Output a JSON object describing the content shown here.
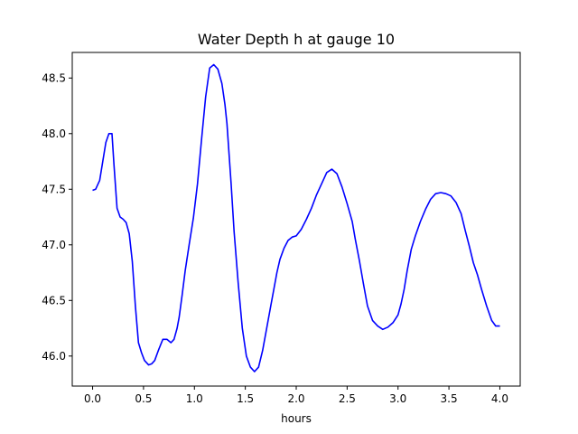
{
  "chart_data": {
    "type": "line",
    "title": "Water Depth h at gauge 10",
    "xlabel": "hours",
    "ylabel": "",
    "xlim": [
      -0.2,
      4.2
    ],
    "ylim": [
      45.73,
      48.73
    ],
    "xticks": [
      0.0,
      0.5,
      1.0,
      1.5,
      2.0,
      2.5,
      3.0,
      3.5,
      4.0
    ],
    "xtick_labels": [
      "0.0",
      "0.5",
      "1.0",
      "1.5",
      "2.0",
      "2.5",
      "3.0",
      "3.5",
      "4.0"
    ],
    "yticks": [
      46.0,
      46.5,
      47.0,
      47.5,
      48.0,
      48.5
    ],
    "ytick_labels": [
      "46.0",
      "46.5",
      "47.0",
      "47.5",
      "48.0",
      "48.5"
    ],
    "grid": false,
    "series": [
      {
        "color": "#0000ff",
        "x": [
          0.0,
          0.03,
          0.07,
          0.1,
          0.13,
          0.16,
          0.19,
          0.21,
          0.24,
          0.27,
          0.3,
          0.33,
          0.36,
          0.39,
          0.42,
          0.45,
          0.48,
          0.51,
          0.55,
          0.58,
          0.61,
          0.65,
          0.69,
          0.73,
          0.77,
          0.8,
          0.83,
          0.85,
          0.88,
          0.91,
          0.95,
          0.99,
          1.03,
          1.07,
          1.11,
          1.15,
          1.19,
          1.23,
          1.27,
          1.3,
          1.32,
          1.34,
          1.36,
          1.39,
          1.43,
          1.47,
          1.51,
          1.55,
          1.59,
          1.63,
          1.67,
          1.71,
          1.75,
          1.78,
          1.81,
          1.84,
          1.88,
          1.92,
          1.96,
          2.0,
          2.05,
          2.1,
          2.15,
          2.2,
          2.25,
          2.3,
          2.35,
          2.4,
          2.45,
          2.5,
          2.55,
          2.58,
          2.62,
          2.66,
          2.7,
          2.75,
          2.8,
          2.85,
          2.9,
          2.95,
          3.0,
          3.03,
          3.06,
          3.09,
          3.13,
          3.17,
          3.22,
          3.27,
          3.32,
          3.37,
          3.42,
          3.47,
          3.52,
          3.57,
          3.62,
          3.66,
          3.7,
          3.74,
          3.78,
          3.82,
          3.87,
          3.92,
          3.96,
          4.0
        ],
        "values": [
          47.49,
          47.5,
          47.58,
          47.75,
          47.92,
          48.0,
          48.0,
          47.72,
          47.33,
          47.25,
          47.23,
          47.2,
          47.1,
          46.85,
          46.45,
          46.12,
          46.03,
          45.96,
          45.92,
          45.93,
          45.96,
          46.06,
          46.15,
          46.15,
          46.12,
          46.15,
          46.25,
          46.35,
          46.55,
          46.77,
          47.01,
          47.24,
          47.55,
          47.95,
          48.33,
          48.59,
          48.62,
          48.58,
          48.45,
          48.26,
          48.09,
          47.82,
          47.55,
          47.12,
          46.66,
          46.25,
          46.0,
          45.9,
          45.86,
          45.9,
          46.05,
          46.25,
          46.45,
          46.6,
          46.75,
          46.87,
          46.97,
          47.04,
          47.07,
          47.08,
          47.14,
          47.23,
          47.33,
          47.45,
          47.55,
          47.65,
          47.68,
          47.64,
          47.52,
          47.37,
          47.21,
          47.05,
          46.86,
          46.65,
          46.45,
          46.32,
          46.27,
          46.24,
          46.26,
          46.3,
          46.37,
          46.47,
          46.6,
          46.77,
          46.96,
          47.08,
          47.21,
          47.32,
          47.41,
          47.46,
          47.47,
          47.46,
          47.44,
          47.38,
          47.28,
          47.13,
          46.99,
          46.84,
          46.73,
          46.6,
          46.45,
          46.32,
          46.27,
          46.27
        ]
      }
    ]
  }
}
